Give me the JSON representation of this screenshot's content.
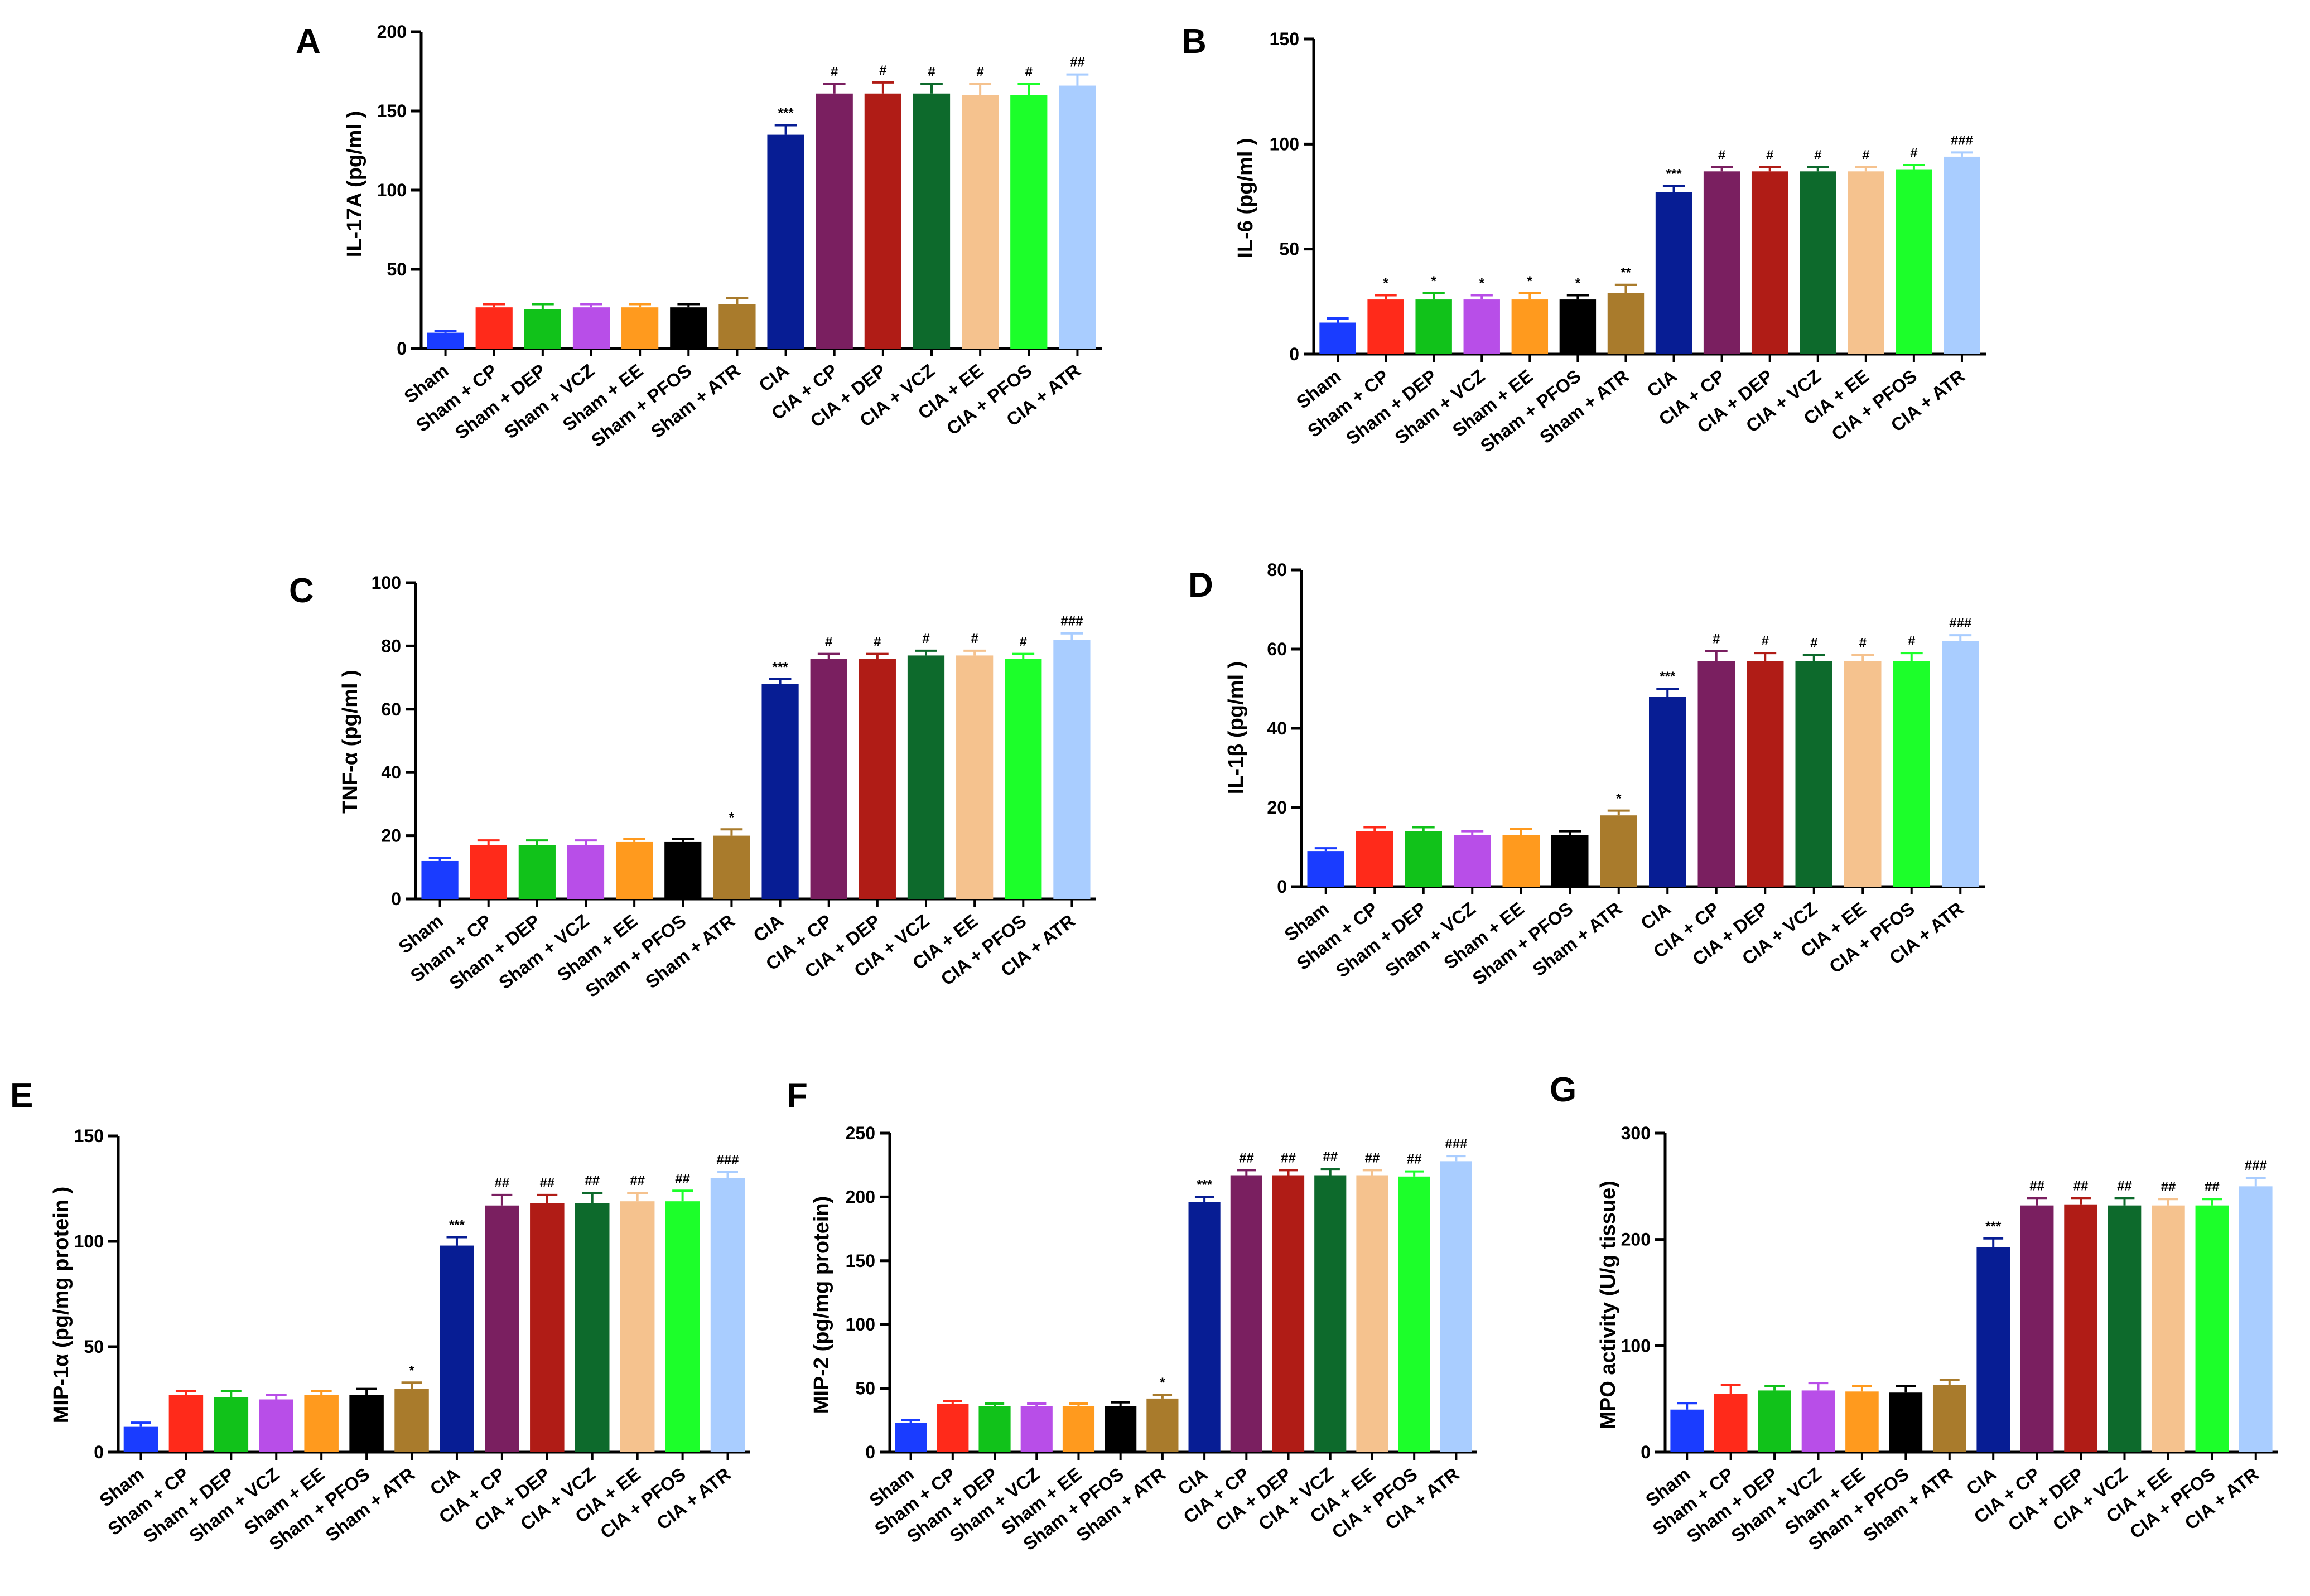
{
  "figure": {
    "groups": [
      "Sham",
      "Sham + CP",
      "Sham + DEP",
      "Sham + VCZ",
      "Sham + EE",
      "Sham + PFOS",
      "Sham + ATR",
      "CIA",
      "CIA + CP",
      "CIA + DEP",
      "CIA + VCZ",
      "CIA + EE",
      "CIA + PFOS",
      "CIA + ATR"
    ],
    "bar_colors": [
      "#1a3cff",
      "#ff2a1a",
      "#11c21a",
      "#b84ee8",
      "#ff9a1e",
      "#000000",
      "#a97b2c",
      "#071d94",
      "#7a1f60",
      "#b01c16",
      "#0d6a2c",
      "#f5c28e",
      "#1cff2a",
      "#a9cdff"
    ]
  },
  "chart_data": [
    {
      "panel": "A",
      "type": "bar",
      "ylabel": "IL-17A (pg/ml )",
      "ylim": [
        0,
        200
      ],
      "yticks": [
        0,
        50,
        100,
        150,
        200
      ],
      "values": [
        10,
        26,
        25,
        26,
        26,
        26,
        28,
        135,
        161,
        161,
        161,
        160,
        160,
        166
      ],
      "errors": [
        1,
        2,
        3,
        2,
        2,
        2,
        4,
        6,
        6,
        7,
        6,
        7,
        7,
        7
      ],
      "annotations": [
        "",
        "",
        "",
        "",
        "",
        "",
        "",
        "***",
        "#",
        "#",
        "#",
        "#",
        "#",
        "##"
      ]
    },
    {
      "panel": "B",
      "type": "bar",
      "ylabel": "IL-6 (pg/ml )",
      "ylim": [
        0,
        150
      ],
      "yticks": [
        0,
        50,
        100,
        150
      ],
      "values": [
        15,
        26,
        26,
        26,
        26,
        26,
        29,
        77,
        87,
        87,
        87,
        87,
        88,
        94
      ],
      "errors": [
        2,
        2,
        3,
        2,
        3,
        2,
        4,
        3,
        2,
        2,
        2,
        2,
        2,
        2
      ],
      "annotations": [
        "",
        "*",
        "*",
        "*",
        "*",
        "*",
        "**",
        "***",
        "#",
        "#",
        "#",
        "#",
        "#",
        "###"
      ]
    },
    {
      "panel": "C",
      "type": "bar",
      "ylabel": "TNF-α (pg/ml )",
      "ylim": [
        0,
        100
      ],
      "yticks": [
        0,
        20,
        40,
        60,
        80,
        100
      ],
      "values": [
        12,
        17,
        17,
        17,
        18,
        18,
        20,
        68,
        76,
        76,
        77,
        77,
        76,
        82
      ],
      "errors": [
        1,
        1.5,
        1.5,
        1.5,
        1,
        1,
        2,
        1.5,
        1.5,
        1.5,
        1.5,
        1.5,
        1.5,
        2
      ],
      "annotations": [
        "",
        "",
        "",
        "",
        "",
        "",
        "*",
        "***",
        "#",
        "#",
        "#",
        "#",
        "#",
        "###"
      ]
    },
    {
      "panel": "D",
      "type": "bar",
      "ylabel": "IL-1β (pg/ml )",
      "ylim": [
        0,
        80
      ],
      "yticks": [
        0,
        20,
        40,
        60,
        80
      ],
      "values": [
        9,
        14,
        14,
        13,
        13,
        13,
        18,
        48,
        57,
        57,
        57,
        57,
        57,
        62
      ],
      "errors": [
        0.7,
        1,
        1,
        1,
        1.5,
        1,
        1.2,
        2,
        2.5,
        2,
        1.5,
        1.5,
        2,
        1.5
      ],
      "annotations": [
        "",
        "",
        "",
        "",
        "",
        "",
        "*",
        "***",
        "#",
        "#",
        "#",
        "#",
        "#",
        "###"
      ]
    },
    {
      "panel": "E",
      "type": "bar",
      "ylabel": "MIP-1α (pg/mg protein )",
      "ylim": [
        0,
        150
      ],
      "yticks": [
        0,
        50,
        100,
        150
      ],
      "values": [
        12,
        27,
        26,
        25,
        27,
        27,
        30,
        98,
        117,
        118,
        118,
        119,
        119,
        130
      ],
      "errors": [
        2,
        2,
        3,
        2,
        2,
        3,
        3,
        4,
        5,
        4,
        5,
        4,
        5,
        3
      ],
      "annotations": [
        "",
        "",
        "",
        "",
        "",
        "",
        "*",
        "***",
        "##",
        "##",
        "##",
        "##",
        "##",
        "###"
      ]
    },
    {
      "panel": "F",
      "type": "bar",
      "ylabel": "MIP-2 (pg/mg protein)",
      "ylim": [
        0,
        250
      ],
      "yticks": [
        0,
        50,
        100,
        150,
        200,
        250
      ],
      "values": [
        23,
        38,
        36,
        36,
        36,
        36,
        42,
        196,
        217,
        217,
        217,
        217,
        216,
        228
      ],
      "errors": [
        2,
        2,
        2,
        2,
        2,
        3,
        3,
        4,
        4,
        4,
        5,
        4,
        4,
        4
      ],
      "annotations": [
        "",
        "",
        "",
        "",
        "",
        "",
        "*",
        "***",
        "##",
        "##",
        "##",
        "##",
        "##",
        "###"
      ]
    },
    {
      "panel": "G",
      "type": "bar",
      "ylabel": "MPO activity (U/g tissue)",
      "ylim": [
        0,
        300
      ],
      "yticks": [
        0,
        100,
        200,
        300
      ],
      "values": [
        40,
        55,
        58,
        58,
        57,
        56,
        63,
        193,
        232,
        233,
        232,
        232,
        232,
        250
      ],
      "errors": [
        6,
        8,
        4,
        7,
        5,
        6,
        5,
        8,
        7,
        6,
        7,
        6,
        6,
        8
      ],
      "annotations": [
        "",
        "",
        "",
        "",
        "",
        "",
        "",
        "***",
        "##",
        "##",
        "##",
        "##",
        "##",
        "###"
      ]
    }
  ]
}
